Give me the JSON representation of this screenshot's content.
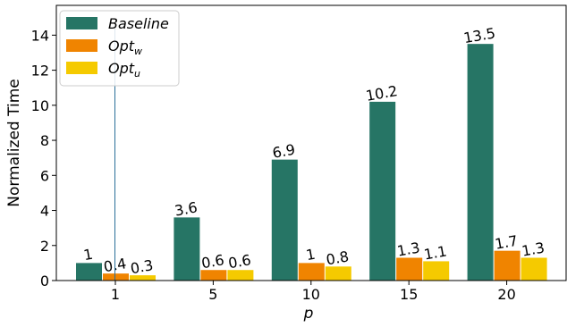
{
  "chart_data": {
    "type": "bar",
    "xlabel": "p",
    "ylabel": "Normalized Time",
    "categories": [
      "1",
      "5",
      "10",
      "15",
      "20"
    ],
    "ylim": [
      0,
      15.7
    ],
    "yticks": [
      0,
      2,
      4,
      6,
      8,
      10,
      12,
      14
    ],
    "grid": false,
    "legend_position": "top-left",
    "series": [
      {
        "name": "Baseline",
        "legend_main": "Baseline",
        "legend_sub": "",
        "color": "#267565",
        "values": [
          1,
          3.6,
          6.9,
          10.2,
          13.5
        ],
        "labels": [
          "1",
          "3.6",
          "6.9",
          "10.2",
          "13.5"
        ]
      },
      {
        "name": "Opt_w",
        "legend_main": "Opt",
        "legend_sub": "w",
        "color": "#f08400",
        "values": [
          0.4,
          0.6,
          1,
          1.3,
          1.7
        ],
        "labels": [
          "0.4",
          "0.6",
          "1",
          "1.3",
          "1.7"
        ]
      },
      {
        "name": "Opt_u",
        "legend_main": "Opt",
        "legend_sub": "u",
        "color": "#f5ca00",
        "values": [
          0.3,
          0.6,
          0.8,
          1.1,
          1.3
        ],
        "labels": [
          "0.3",
          "0.6",
          "0.8",
          "1.1",
          "1.3"
        ]
      }
    ]
  }
}
